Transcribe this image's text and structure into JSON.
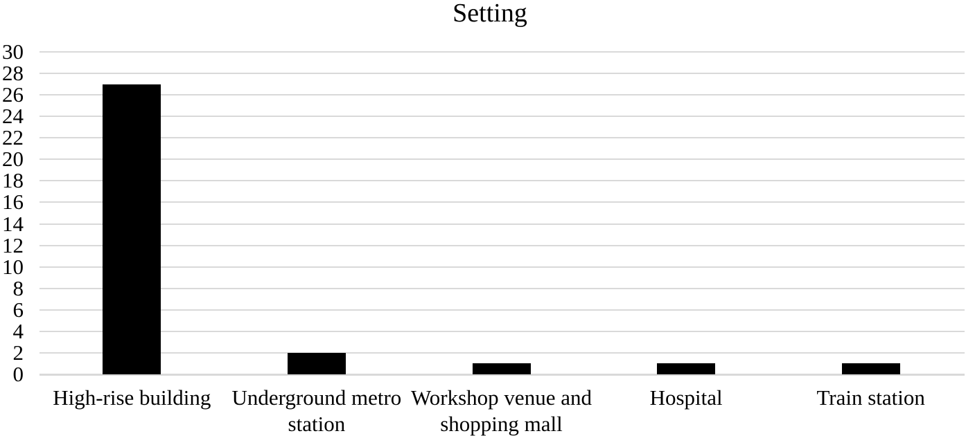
{
  "chart_data": {
    "type": "bar",
    "title": "Setting",
    "categories": [
      "High-rise building",
      "Underground metro station",
      "Workshop venue and shopping mall",
      "Hospital",
      "Train station"
    ],
    "values": [
      27,
      2,
      1,
      1,
      1
    ],
    "xlabel": "",
    "ylabel": "",
    "ylim": [
      0,
      30
    ],
    "ytick_step": 2,
    "yticks": [
      0,
      2,
      4,
      6,
      8,
      10,
      12,
      14,
      16,
      18,
      20,
      22,
      24,
      26,
      28,
      30
    ],
    "grid": true,
    "legend": false,
    "bar_color": "#000000",
    "gridline_color": "#d9d9d9",
    "axis_line_color": "#d9d9d9",
    "text_color": "#000000",
    "background_color": "#ffffff"
  }
}
